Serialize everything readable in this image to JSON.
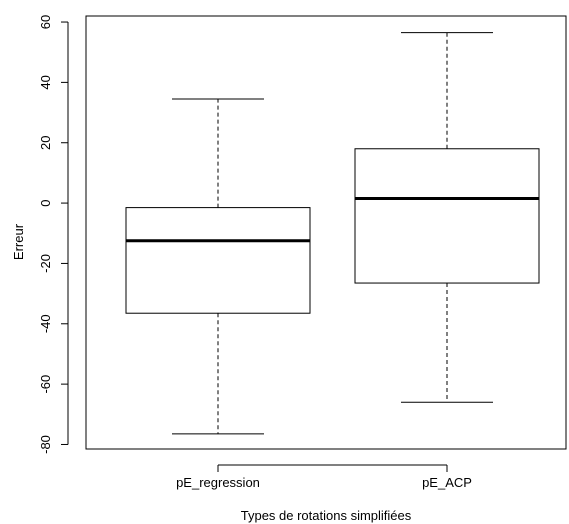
{
  "chart_data": {
    "type": "boxplot",
    "title": "",
    "xlabel": "Types de rotations simplifiées",
    "ylabel": "Erreur",
    "ylim": [
      -81.5,
      62
    ],
    "yticks": [
      -80,
      -60,
      -40,
      -20,
      0,
      20,
      40,
      60
    ],
    "ytick_labels": [
      "-80",
      "-60",
      "-40",
      "-20",
      "0",
      "20",
      "40",
      "60"
    ],
    "categories": [
      "pE_regression",
      "pE_ACP"
    ],
    "boxes": [
      {
        "category": "pE_regression",
        "whisker_low": -76.5,
        "q1": -36.5,
        "median": -12.5,
        "q3": -1.5,
        "whisker_high": 34.5
      },
      {
        "category": "pE_ACP",
        "whisker_low": -66,
        "q1": -26.5,
        "median": 1.5,
        "q3": 18,
        "whisker_high": 56.5
      }
    ],
    "grid": false,
    "legend": "none"
  }
}
